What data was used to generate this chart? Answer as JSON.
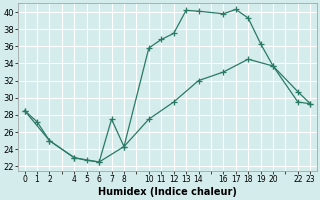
{
  "xlabel": "Humidex (Indice chaleur)",
  "bg_color": "#d5ecec",
  "grid_color": "#ffffff",
  "line_color": "#2a7a65",
  "ylim": [
    21.5,
    41.0
  ],
  "xlim": [
    -0.5,
    23.5
  ],
  "yticks": [
    22,
    24,
    26,
    28,
    30,
    32,
    34,
    36,
    38,
    40
  ],
  "xtick_positions": [
    0,
    1,
    2,
    3,
    4,
    5,
    6,
    7,
    8,
    9,
    10,
    11,
    12,
    13,
    14,
    15,
    16,
    17,
    18,
    19,
    20,
    21,
    22,
    23
  ],
  "xtick_labels": [
    "0",
    "1",
    "2",
    "",
    "4",
    "5",
    "6",
    "7",
    "8",
    "",
    "10",
    "11",
    "12",
    "13",
    "14",
    "",
    "16",
    "17",
    "18",
    "19",
    "20",
    "",
    "22",
    "23"
  ],
  "line1_x": [
    0,
    1,
    2,
    4,
    5,
    6,
    7,
    8,
    10,
    11,
    12,
    13,
    14,
    16,
    17,
    18,
    19,
    20,
    22,
    23
  ],
  "line1_y": [
    28.5,
    27.2,
    25.0,
    23.0,
    22.7,
    22.5,
    27.5,
    24.3,
    35.8,
    36.8,
    37.5,
    40.2,
    40.1,
    39.8,
    40.3,
    39.3,
    36.3,
    33.7,
    30.7,
    29.3
  ],
  "line2_x": [
    0,
    2,
    4,
    6,
    8,
    10,
    12,
    14,
    16,
    18,
    20,
    22,
    23
  ],
  "line2_y": [
    28.5,
    25.0,
    23.0,
    22.5,
    24.3,
    27.5,
    29.5,
    32.0,
    33.0,
    34.5,
    33.7,
    29.5,
    29.3
  ]
}
